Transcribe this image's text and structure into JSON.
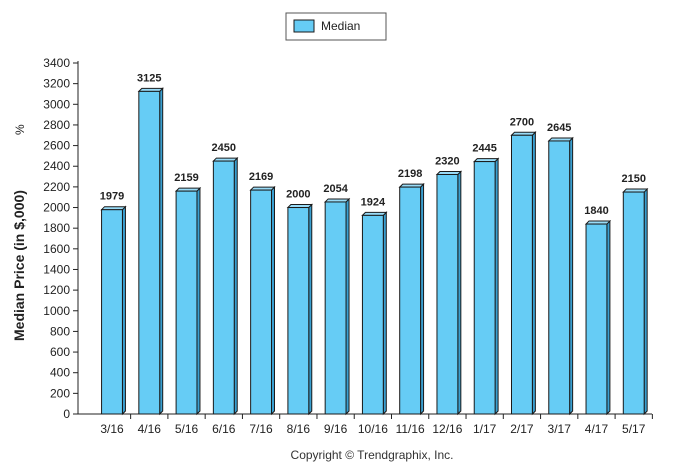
{
  "chart_data": {
    "type": "bar",
    "categories": [
      "3/16",
      "4/16",
      "5/16",
      "6/16",
      "7/16",
      "8/16",
      "9/16",
      "10/16",
      "11/16",
      "12/16",
      "1/17",
      "2/17",
      "3/17",
      "4/17",
      "5/17"
    ],
    "series": [
      {
        "name": "Median",
        "values": [
          1979,
          3125,
          2159,
          2450,
          2169,
          2000,
          2054,
          1924,
          2198,
          2320,
          2445,
          2700,
          2645,
          1840,
          2150
        ]
      }
    ],
    "data_labels": [
      "1979",
      "3125",
      "2159",
      "2450",
      "2169",
      "2000",
      "2054",
      "1924",
      "2198",
      "2320",
      "2445",
      "2700",
      "2645",
      "1840",
      "2150"
    ],
    "ylabel": "Median Price (in $,000)",
    "ylabel_suffix": "%",
    "ylim": [
      0,
      3400
    ],
    "yticks": [
      0,
      200,
      400,
      600,
      800,
      1000,
      1200,
      1400,
      1600,
      1800,
      2000,
      2200,
      2400,
      2600,
      2800,
      3000,
      3200,
      3400
    ],
    "grid": false,
    "legend_position": "top-center",
    "bar_color": "#66ccf5",
    "bar_edge_color": "#1a1a1a"
  },
  "footer": {
    "copyright": "Copyright © Trendgraphix, Inc."
  }
}
